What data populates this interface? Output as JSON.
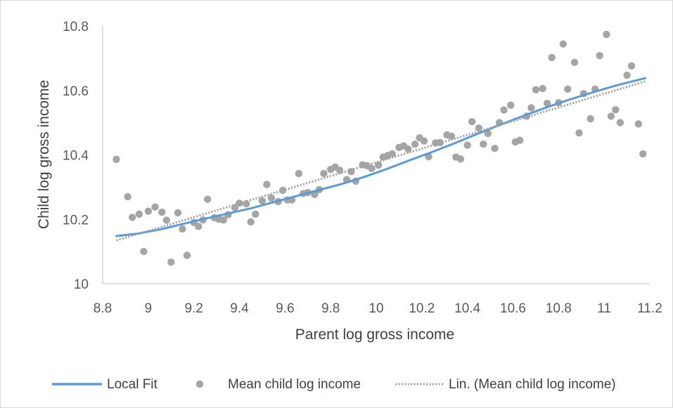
{
  "chart_data": {
    "type": "scatter",
    "xlabel": "Parent log gross income",
    "ylabel": "Child log gross income",
    "xlim": [
      8.8,
      11.2
    ],
    "ylim": [
      10.0,
      10.8
    ],
    "xticks": [
      "8.8",
      "9",
      "9.2",
      "9.4",
      "9.6",
      "9.8",
      "10",
      "10.2",
      "10.4",
      "10.6",
      "10.8",
      "11",
      "11.2"
    ],
    "yticks": [
      "10",
      "10.2",
      "10.4",
      "10.6",
      "10.8"
    ],
    "grid": false,
    "legend_position": "bottom",
    "series": [
      {
        "name": "Local Fit",
        "kind": "line",
        "color": "#5b9bd5",
        "points": [
          [
            8.86,
            10.148
          ],
          [
            8.95,
            10.155
          ],
          [
            9.05,
            10.168
          ],
          [
            9.15,
            10.185
          ],
          [
            9.25,
            10.202
          ],
          [
            9.35,
            10.218
          ],
          [
            9.45,
            10.234
          ],
          [
            9.55,
            10.253
          ],
          [
            9.65,
            10.272
          ],
          [
            9.75,
            10.291
          ],
          [
            9.85,
            10.31
          ],
          [
            9.95,
            10.332
          ],
          [
            10.05,
            10.357
          ],
          [
            10.15,
            10.384
          ],
          [
            10.25,
            10.41
          ],
          [
            10.35,
            10.438
          ],
          [
            10.45,
            10.467
          ],
          [
            10.55,
            10.495
          ],
          [
            10.65,
            10.522
          ],
          [
            10.75,
            10.548
          ],
          [
            10.85,
            10.572
          ],
          [
            10.95,
            10.594
          ],
          [
            11.05,
            10.615
          ],
          [
            11.18,
            10.638
          ]
        ]
      },
      {
        "name": "Mean child log income",
        "kind": "scatter",
        "color": "#a5a5a5",
        "points": [
          [
            8.86,
            10.386
          ],
          [
            8.91,
            10.27
          ],
          [
            8.93,
            10.206
          ],
          [
            8.96,
            10.216
          ],
          [
            8.98,
            10.1
          ],
          [
            9.0,
            10.225
          ],
          [
            9.03,
            10.238
          ],
          [
            9.06,
            10.222
          ],
          [
            9.08,
            10.197
          ],
          [
            9.1,
            10.067
          ],
          [
            9.13,
            10.22
          ],
          [
            9.15,
            10.17
          ],
          [
            9.17,
            10.088
          ],
          [
            9.2,
            10.19
          ],
          [
            9.22,
            10.178
          ],
          [
            9.24,
            10.198
          ],
          [
            9.26,
            10.262
          ],
          [
            9.29,
            10.205
          ],
          [
            9.31,
            10.2
          ],
          [
            9.33,
            10.198
          ],
          [
            9.35,
            10.214
          ],
          [
            9.38,
            10.236
          ],
          [
            9.4,
            10.25
          ],
          [
            9.43,
            10.248
          ],
          [
            9.45,
            10.192
          ],
          [
            9.47,
            10.216
          ],
          [
            9.5,
            10.257
          ],
          [
            9.52,
            10.308
          ],
          [
            9.54,
            10.266
          ],
          [
            9.57,
            10.255
          ],
          [
            9.59,
            10.29
          ],
          [
            9.61,
            10.26
          ],
          [
            9.63,
            10.26
          ],
          [
            9.66,
            10.342
          ],
          [
            9.68,
            10.28
          ],
          [
            9.7,
            10.283
          ],
          [
            9.73,
            10.277
          ],
          [
            9.75,
            10.292
          ],
          [
            9.77,
            10.342
          ],
          [
            9.8,
            10.355
          ],
          [
            9.82,
            10.362
          ],
          [
            9.84,
            10.352
          ],
          [
            9.87,
            10.323
          ],
          [
            9.89,
            10.348
          ],
          [
            9.91,
            10.318
          ],
          [
            9.94,
            10.369
          ],
          [
            9.96,
            10.366
          ],
          [
            9.98,
            10.358
          ],
          [
            10.01,
            10.368
          ],
          [
            10.03,
            10.393
          ],
          [
            10.05,
            10.398
          ],
          [
            10.07,
            10.403
          ],
          [
            10.1,
            10.423
          ],
          [
            10.12,
            10.428
          ],
          [
            10.14,
            10.418
          ],
          [
            10.17,
            10.433
          ],
          [
            10.19,
            10.453
          ],
          [
            10.21,
            10.443
          ],
          [
            10.23,
            10.394
          ],
          [
            10.26,
            10.437
          ],
          [
            10.28,
            10.438
          ],
          [
            10.31,
            10.462
          ],
          [
            10.33,
            10.458
          ],
          [
            10.35,
            10.393
          ],
          [
            10.37,
            10.387
          ],
          [
            10.4,
            10.43
          ],
          [
            10.42,
            10.503
          ],
          [
            10.45,
            10.483
          ],
          [
            10.47,
            10.433
          ],
          [
            10.49,
            10.466
          ],
          [
            10.52,
            10.42
          ],
          [
            10.54,
            10.5
          ],
          [
            10.56,
            10.539
          ],
          [
            10.59,
            10.554
          ],
          [
            10.61,
            10.44
          ],
          [
            10.63,
            10.445
          ],
          [
            10.66,
            10.52
          ],
          [
            10.68,
            10.546
          ],
          [
            10.7,
            10.602
          ],
          [
            10.73,
            10.606
          ],
          [
            10.75,
            10.56
          ],
          [
            10.77,
            10.702
          ],
          [
            10.8,
            10.562
          ],
          [
            10.82,
            10.744
          ],
          [
            10.84,
            10.604
          ],
          [
            10.87,
            10.687
          ],
          [
            10.89,
            10.468
          ],
          [
            10.91,
            10.59
          ],
          [
            10.94,
            10.512
          ],
          [
            10.96,
            10.604
          ],
          [
            10.98,
            10.708
          ],
          [
            11.01,
            10.774
          ],
          [
            11.03,
            10.52
          ],
          [
            11.05,
            10.54
          ],
          [
            11.07,
            10.5
          ],
          [
            11.1,
            10.647
          ],
          [
            11.12,
            10.676
          ],
          [
            11.15,
            10.496
          ],
          [
            11.17,
            10.403
          ]
        ]
      },
      {
        "name": "Lin. (Mean child log income)",
        "kind": "line",
        "style": "dotted",
        "color": "#a5a5a5",
        "points": [
          [
            8.86,
            10.134
          ],
          [
            11.18,
            10.628
          ]
        ]
      }
    ]
  },
  "legend": {
    "local_fit": "Local Fit",
    "mean_child": "Mean child log income",
    "linear_trend": "Lin. (Mean child log income)"
  }
}
